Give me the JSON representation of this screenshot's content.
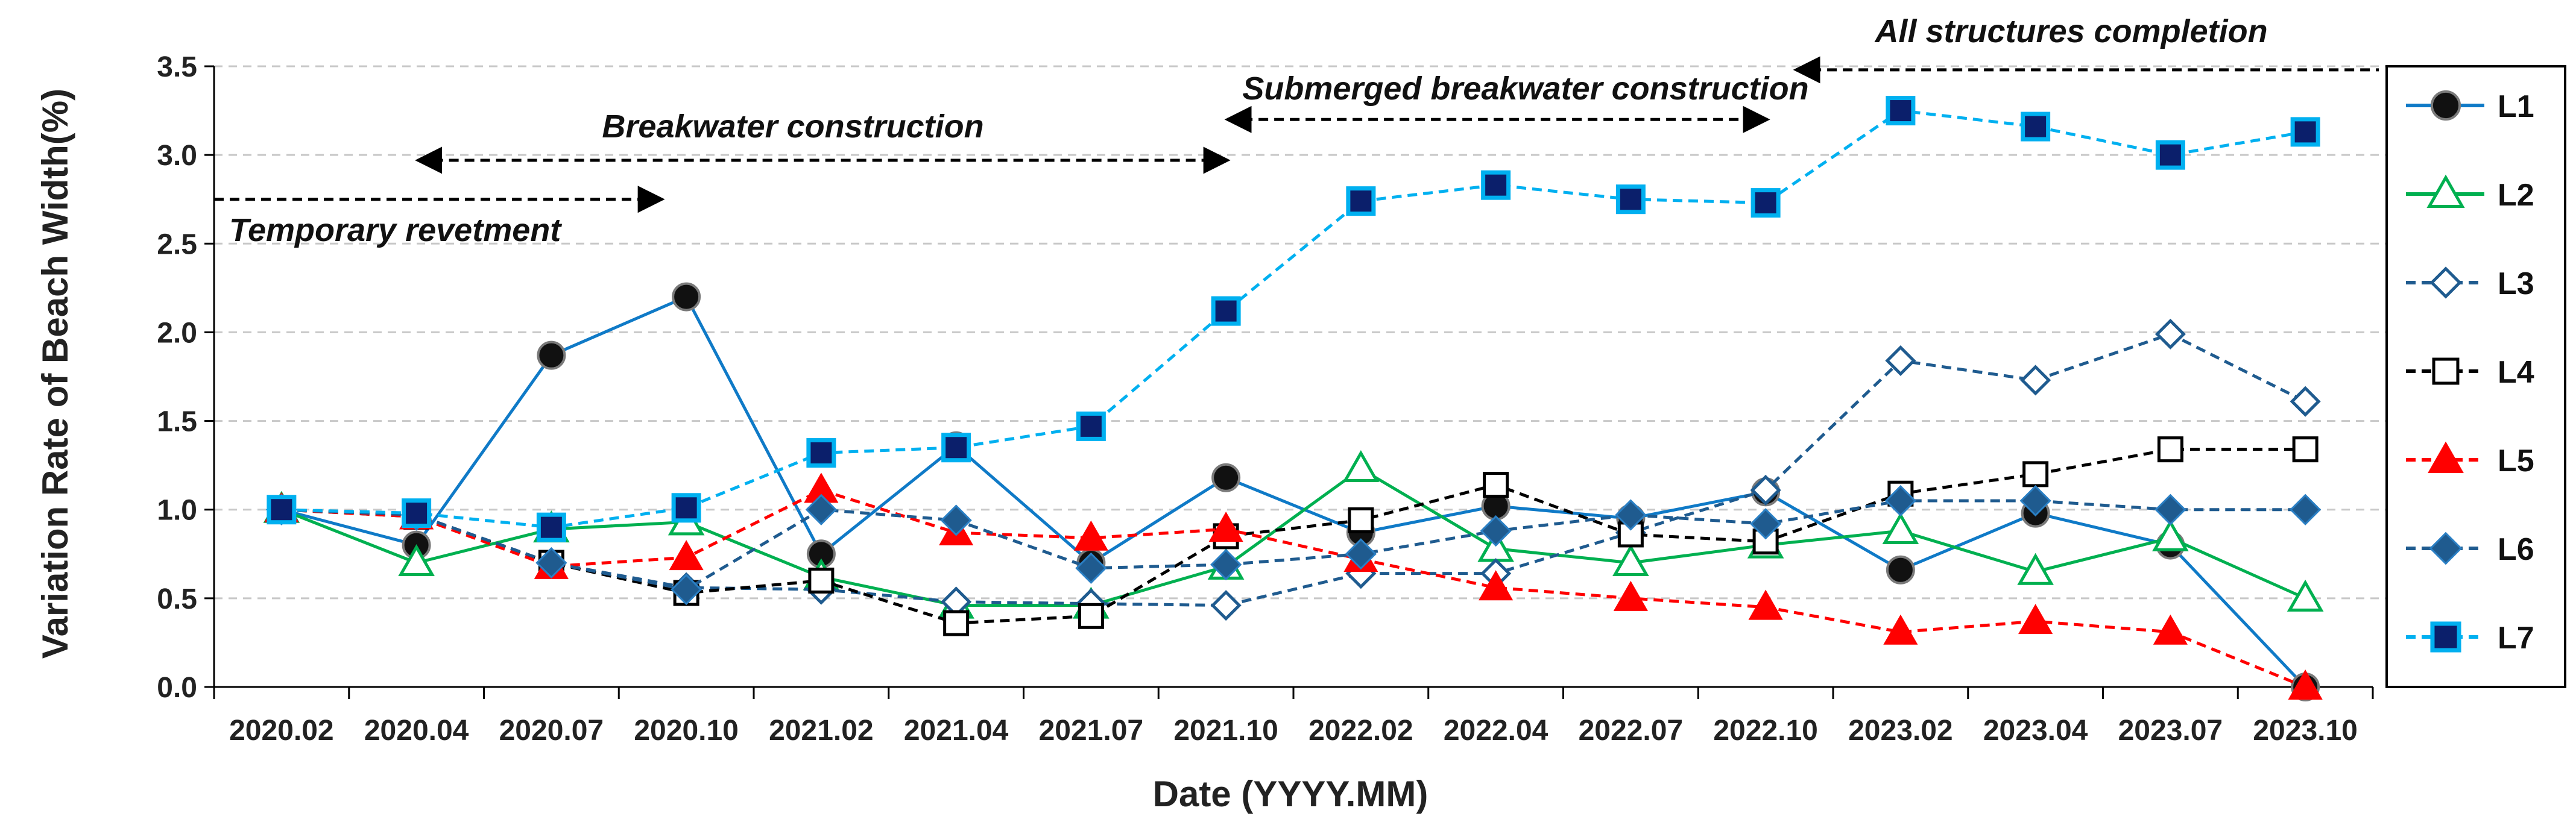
{
  "chart_data": {
    "type": "line",
    "title": "",
    "xlabel": "Date (YYYY.MM)",
    "ylabel": "Variation Rate of Beach Width(%)",
    "ylim": [
      0,
      3.5
    ],
    "yticks": [
      "0.0",
      "0.5",
      "1.0",
      "1.5",
      "2.0",
      "2.5",
      "3.0",
      "3.5"
    ],
    "grid": "horizontal dashed",
    "legend_position": "right",
    "categories": [
      "2020.02",
      "2020.04",
      "2020.07",
      "2020.10",
      "2021.02",
      "2021.04",
      "2021.07",
      "2021.10",
      "2022.02",
      "2022.04",
      "2022.07",
      "2022.10",
      "2023.02",
      "2023.04",
      "2023.07",
      "2023.10"
    ],
    "series": [
      {
        "name": "L1",
        "color": "#0f7ac7",
        "dash": "solid",
        "marker": "circle-black",
        "values": [
          1.0,
          0.8,
          1.87,
          2.2,
          0.75,
          1.36,
          0.7,
          1.18,
          0.87,
          1.02,
          0.95,
          1.1,
          0.66,
          0.98,
          0.8,
          0.0
        ]
      },
      {
        "name": "L2",
        "color": "#00b050",
        "dash": "solid",
        "marker": "triangle-open",
        "values": [
          1.0,
          0.7,
          0.89,
          0.93,
          0.62,
          0.46,
          0.46,
          0.68,
          1.23,
          0.78,
          0.7,
          0.8,
          0.88,
          0.65,
          0.84,
          0.5
        ]
      },
      {
        "name": "L3",
        "color": "#1f5b8f",
        "dash": "dashed",
        "marker": "diamond-open",
        "values": [
          1.0,
          0.97,
          0.7,
          0.56,
          0.55,
          0.48,
          0.47,
          0.46,
          0.64,
          0.64,
          0.87,
          1.11,
          1.84,
          1.73,
          1.99,
          1.61
        ]
      },
      {
        "name": "L4",
        "color": "#000000",
        "dash": "dashed",
        "marker": "square-open",
        "values": [
          1.0,
          0.96,
          0.7,
          0.53,
          0.6,
          0.36,
          0.4,
          0.85,
          0.94,
          1.14,
          0.86,
          0.82,
          1.09,
          1.2,
          1.34,
          1.34
        ]
      },
      {
        "name": "L5",
        "color": "#ff0000",
        "dash": "dashed",
        "marker": "triangle-filled",
        "values": [
          1.0,
          0.96,
          0.68,
          0.73,
          1.11,
          0.87,
          0.84,
          0.89,
          0.72,
          0.56,
          0.5,
          0.45,
          0.31,
          0.37,
          0.31,
          0.0
        ]
      },
      {
        "name": "L6",
        "color": "#1f5b8f",
        "dash": "dashed",
        "marker": "diamond-filled",
        "values": [
          1.0,
          0.97,
          0.7,
          0.55,
          1.0,
          0.94,
          0.67,
          0.69,
          0.75,
          0.88,
          0.97,
          0.92,
          1.05,
          1.05,
          1.0,
          1.0
        ]
      },
      {
        "name": "L7",
        "color": "#00b0f0",
        "dash": "dashed",
        "marker": "square-filled",
        "values": [
          1.0,
          0.98,
          0.9,
          1.01,
          1.32,
          1.35,
          1.47,
          2.12,
          2.74,
          2.83,
          2.75,
          2.73,
          3.25,
          3.16,
          3.0,
          3.13
        ]
      }
    ],
    "annotations": [
      {
        "text": "Temporary revetment",
        "arrow_from": "2020.02",
        "arrow_to": "2020.10",
        "arrow_y": 2.75,
        "arrowheads": "end"
      },
      {
        "text": "Breakwater construction",
        "arrow_from": "2020.04",
        "arrow_to": "2021.10",
        "arrow_y": 2.97,
        "arrowheads": "both"
      },
      {
        "text": "Submerged breakwater construction",
        "arrow_from": "2021.10",
        "arrow_to": "2022.10",
        "arrow_y": 3.2,
        "arrowheads": "both"
      },
      {
        "text": "All structures completion",
        "arrow_from": "2022.10",
        "arrow_to": "end",
        "arrow_y": 3.48,
        "arrowheads": "start"
      }
    ]
  }
}
